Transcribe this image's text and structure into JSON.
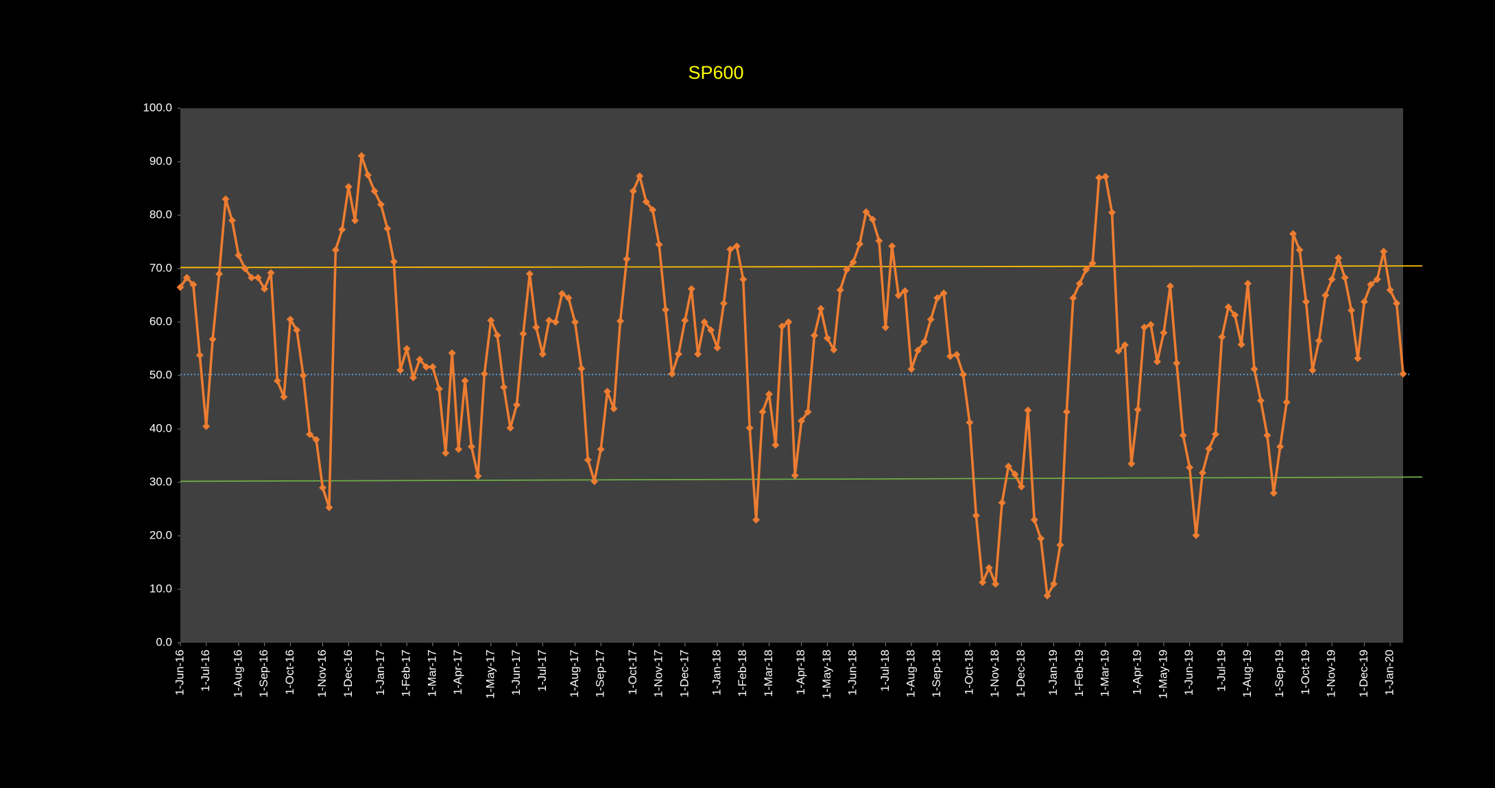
{
  "chart_data": {
    "type": "line",
    "title": "SP600",
    "background": "#000000",
    "plot_background": "#404040",
    "categories": [
      "1-Jun-16",
      null,
      null,
      null,
      "1-Jul-16",
      null,
      null,
      null,
      null,
      "1-Aug-16",
      null,
      null,
      null,
      "1-Sep-16",
      null,
      null,
      null,
      "1-Oct-16",
      null,
      null,
      null,
      null,
      "1-Nov-16",
      null,
      null,
      null,
      "1-Dec-16",
      null,
      null,
      null,
      null,
      "1-Jan-17",
      null,
      null,
      null,
      "1-Feb-17",
      null,
      null,
      null,
      "1-Mar-17",
      null,
      null,
      null,
      "1-Apr-17",
      null,
      null,
      null,
      null,
      "1-May-17",
      null,
      null,
      null,
      "1-Jun-17",
      null,
      null,
      null,
      "1-Jul-17",
      null,
      null,
      null,
      null,
      "1-Aug-17",
      null,
      null,
      null,
      "1-Sep-17",
      null,
      null,
      null,
      null,
      "1-Oct-17",
      null,
      null,
      null,
      "1-Nov-17",
      null,
      null,
      null,
      "1-Dec-17",
      null,
      null,
      null,
      null,
      "1-Jan-18",
      null,
      null,
      null,
      "1-Feb-18",
      null,
      null,
      null,
      "1-Mar-18",
      null,
      null,
      null,
      null,
      "1-Apr-18",
      null,
      null,
      null,
      "1-May-18",
      null,
      null,
      null,
      "1-Jun-18",
      null,
      null,
      null,
      null,
      "1-Jul-18",
      null,
      null,
      null,
      "1-Aug-18",
      null,
      null,
      null,
      "1-Sep-18",
      null,
      null,
      null,
      null,
      "1-Oct-18",
      null,
      null,
      null,
      "1-Nov-18",
      null,
      null,
      null,
      "1-Dec-18",
      null,
      null,
      null,
      null,
      "1-Jan-19",
      null,
      null,
      null,
      "1-Feb-19",
      null,
      null,
      null,
      "1-Mar-19",
      null,
      null,
      null,
      null,
      "1-Apr-19",
      null,
      null,
      null,
      "1-May-19",
      null,
      null,
      null,
      "1-Jun-19",
      null,
      null,
      null,
      null,
      "1-Jul-19",
      null,
      null,
      null,
      "1-Aug-19",
      null,
      null,
      null,
      null,
      "1-Sep-19",
      null,
      null,
      null,
      "1-Oct-19",
      null,
      null,
      null,
      "1-Nov-19",
      null,
      null,
      null,
      null,
      "1-Dec-19",
      null,
      null,
      null,
      "1-Jan-20",
      null,
      null
    ],
    "series": [
      {
        "color": "#ed7d31",
        "values": [
          66.5,
          68.3,
          67,
          53.8,
          40.5,
          56.8,
          69,
          83,
          79,
          72.5,
          70,
          68.3,
          68.3,
          66.2,
          69.2,
          49,
          46,
          60.5,
          58.5,
          50,
          39,
          38,
          29,
          25.3,
          73.5,
          77.3,
          85.3,
          79,
          91.1,
          87.5,
          84.5,
          82,
          77.5,
          71.3,
          51,
          55,
          49.6,
          53,
          51.6,
          51.6,
          47.5,
          35.5,
          54.2,
          36.2,
          49,
          36.7,
          31.2,
          50.3,
          60.3,
          57.5,
          47.8,
          40.2,
          44.5,
          57.8,
          69,
          59,
          54,
          60.3,
          60,
          65.3,
          64.5,
          60,
          51.3,
          34.2,
          30.2,
          36.2,
          47,
          43.8,
          60.2,
          71.8,
          84.5,
          87.3,
          82.5,
          81,
          74.5,
          62.3,
          50.3,
          54,
          60.3,
          66.2,
          54,
          60,
          58.5,
          55.2,
          63.5,
          73.6,
          74.2,
          68,
          40.2,
          23,
          43.2,
          46.5,
          37,
          59.2,
          60,
          31.3,
          41.5,
          43.2,
          57.5,
          62.5,
          57,
          54.8,
          66,
          69.8,
          71.2,
          74.6,
          80.6,
          79.2,
          75.2,
          59,
          74.2,
          65,
          65.8,
          51.2,
          54.7,
          56.3,
          60.5,
          64.5,
          65.4,
          53.6,
          53.9,
          50.2,
          41.2,
          23.8,
          11.3,
          14,
          11,
          26.2,
          33,
          31.5,
          29.2,
          43.5,
          23,
          19.5,
          8.8,
          11,
          18.3,
          43.2,
          64.5,
          67.2,
          69.8,
          71,
          87,
          87.2,
          80.5,
          54.6,
          55.7,
          33.5,
          43.6,
          59,
          59.5,
          52.6,
          58,
          66.7,
          52.3,
          38.8,
          32.8,
          20.1,
          31.8,
          36.3,
          39,
          57.2,
          62.8,
          61.3,
          55.8,
          67.2,
          51.2,
          45.3,
          38.8,
          28,
          36.7,
          45,
          76.5,
          73.5,
          63.8,
          51,
          56.5,
          65,
          68,
          72,
          68.3,
          62.2,
          53.2,
          63.8,
          67,
          68,
          73.2,
          66,
          63.5,
          50.3
        ]
      }
    ],
    "reference_lines": [
      {
        "color": "#ffc000",
        "values": [
          70.2,
          70.5
        ],
        "dashed": false
      },
      {
        "color": "#5b9bd5",
        "values": [
          50.2,
          50.2
        ],
        "dashed": true
      },
      {
        "color": "#70ad47",
        "values": [
          30.2,
          31
        ],
        "dashed": false
      }
    ],
    "ylim": [
      0,
      100
    ],
    "yticks": [
      {
        "value": 0,
        "label": "0.0"
      },
      {
        "value": 10,
        "label": "10.0"
      },
      {
        "value": 20,
        "label": "20.0"
      },
      {
        "value": 30,
        "label": "30.0"
      },
      {
        "value": 40,
        "label": "40.0"
      },
      {
        "value": 50,
        "label": "50.0"
      },
      {
        "value": 60,
        "label": "60.0"
      },
      {
        "value": 70,
        "label": "70.0"
      },
      {
        "value": 80,
        "label": "80.0"
      },
      {
        "value": 90,
        "label": "90.0"
      },
      {
        "value": 100,
        "label": "100.0"
      }
    ],
    "grid": false
  }
}
